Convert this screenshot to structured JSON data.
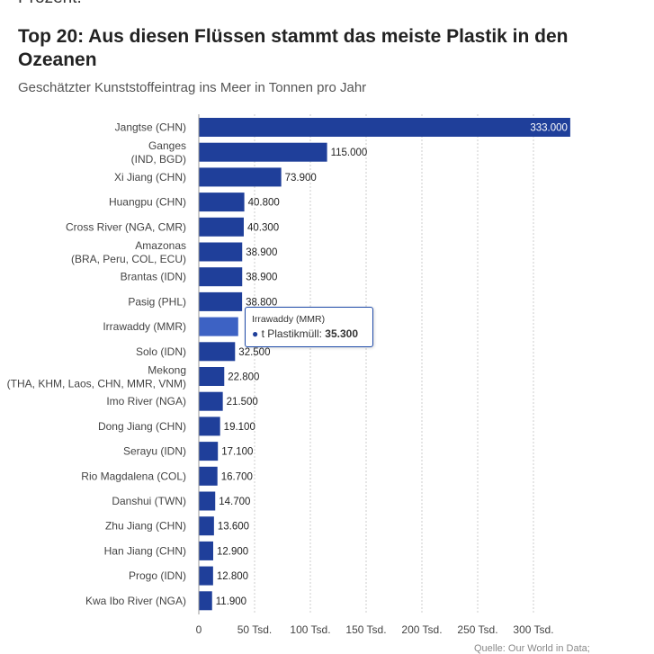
{
  "header": {
    "cut_text": "Prozent.",
    "title": "Top 20: Aus diesen Flüssen stammt das meiste Plastik in den Ozeanen",
    "subtitle": "Geschätzter Kunststoffeintrag ins Meer in Tonnen pro Jahr"
  },
  "tooltip": {
    "title": "Irrawaddy (MMR)",
    "series": "t Plastikmüll:",
    "value": "35.300"
  },
  "source": "Quelle: Our World in Data;",
  "colors": {
    "bar": "#1f3f9a",
    "bar_highlight": "#3d62c4",
    "grid": "#cccccc"
  },
  "chart_data": {
    "type": "bar",
    "orientation": "horizontal",
    "categories": [
      "Jangtse (CHN)",
      "Ganges\n(IND, BGD)",
      "Xi Jiang (CHN)",
      "Huangpu (CHN)",
      "Cross River (NGA, CMR)",
      "Amazonas\n(BRA, Peru, COL, ECU)",
      "Brantas (IDN)",
      "Pasig (PHL)",
      "Irrawaddy (MMR)",
      "Solo (IDN)",
      "Mekong\n(THA, KHM, Laos, CHN, MMR, VNM)",
      "Imo River (NGA)",
      "Dong Jiang (CHN)",
      "Serayu (IDN)",
      "Rio Magdalena (COL)",
      "Danshui (TWN)",
      "Zhu Jiang (CHN)",
      "Han Jiang (CHN)",
      "Progo (IDN)",
      "Kwa Ibo River (NGA)"
    ],
    "values": [
      333000,
      115000,
      73900,
      40800,
      40300,
      38900,
      38900,
      38800,
      35300,
      32500,
      22800,
      21500,
      19100,
      17100,
      16700,
      14700,
      13600,
      12900,
      12800,
      11900
    ],
    "value_labels": [
      "333.000",
      "115.000",
      "73.900",
      "40.800",
      "40.300",
      "38.900",
      "38.900",
      "38.800",
      "",
      "32.500",
      "22.800",
      "21.500",
      "19.100",
      "17.100",
      "16.700",
      "14.700",
      "13.600",
      "12.900",
      "12.800",
      "11.900"
    ],
    "highlighted_index": 8,
    "xlim": [
      0,
      350000
    ],
    "x_ticks": [
      0,
      50000,
      100000,
      150000,
      200000,
      250000,
      300000
    ],
    "x_tick_labels": [
      "0",
      "50 Tsd.",
      "100 Tsd.",
      "150 Tsd.",
      "200 Tsd.",
      "250 Tsd.",
      "300 Tsd."
    ],
    "grid": true
  }
}
